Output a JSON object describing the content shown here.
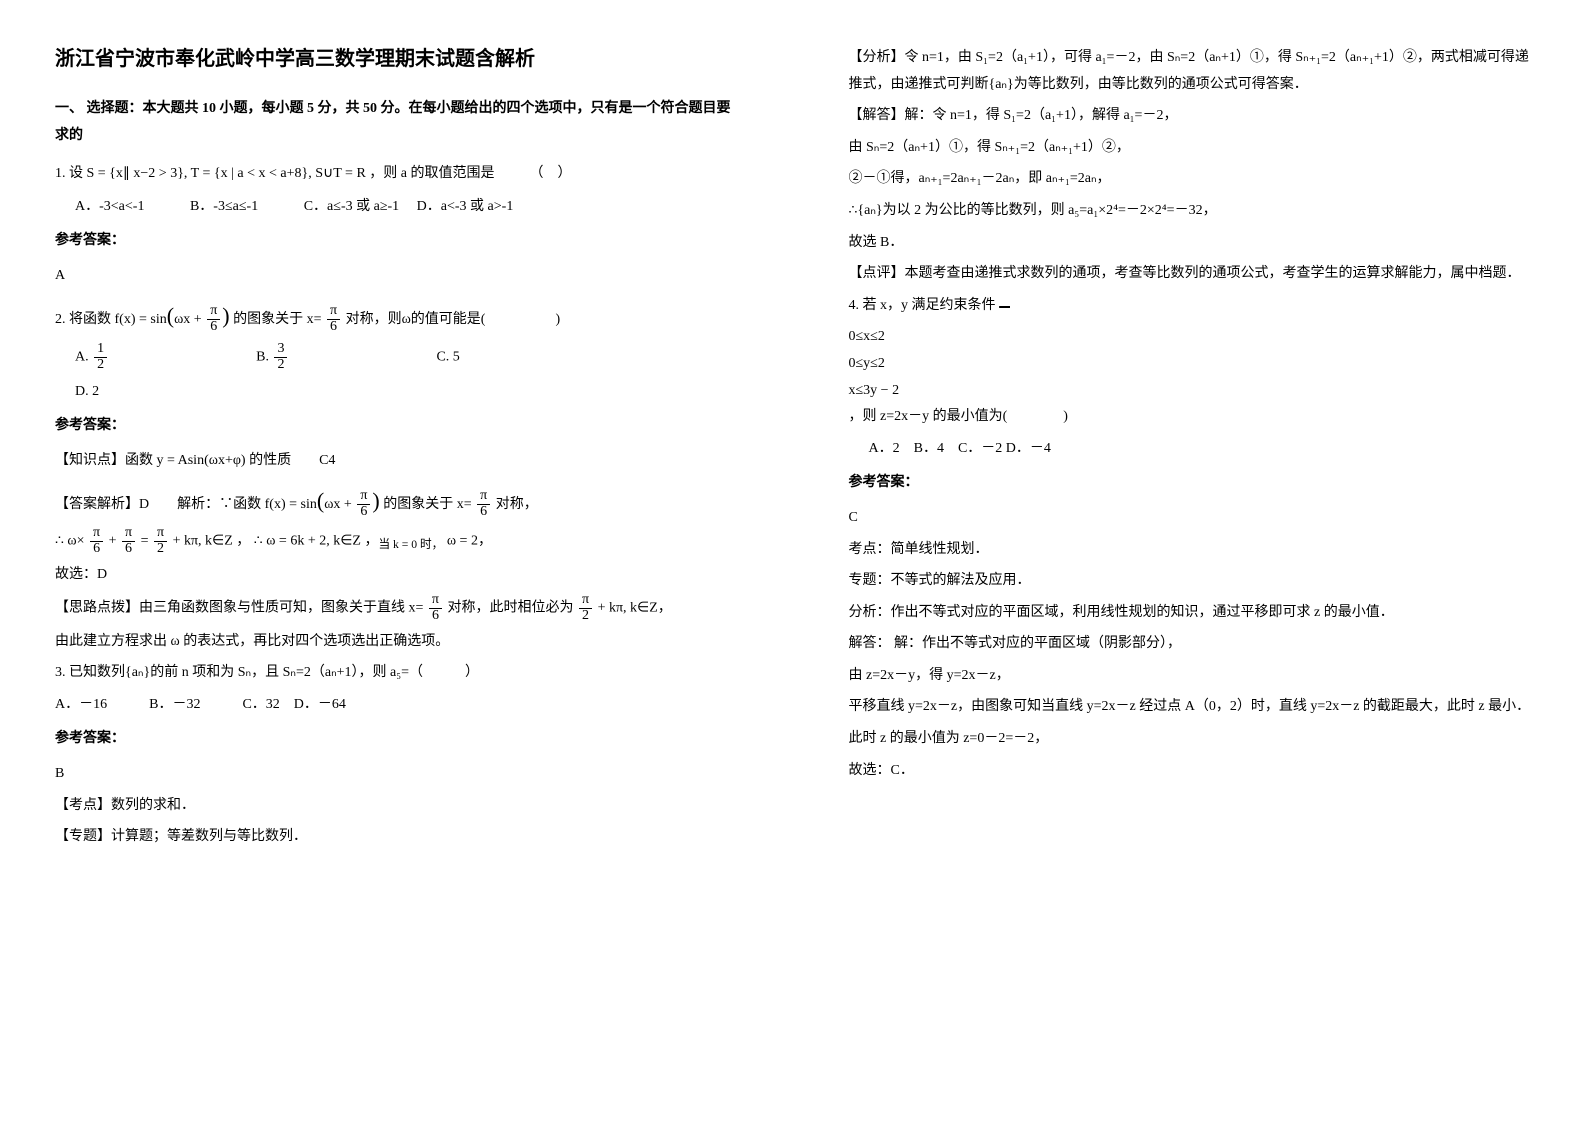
{
  "title": "浙江省宁波市奉化武岭中学高三数学理期末试题含解析",
  "section1_heading": "一、 选择题：本大题共 10 小题，每小题 5 分，共 50 分。在每小题给出的四个选项中，只有是一个符合题目要求的",
  "q1": {
    "stem_prefix": "1. 设",
    "set_expr": "S = {x∥ x−2 > 3}, T = {x | a < x < a+8}, S∪T = R",
    "stem_suffix": "，则 a 的取值范围是　　　（　）",
    "optA": "A．-3<a<-1",
    "optB": "B．-3≤a≤-1",
    "optC": "C．a≤-3 或 a≥-1",
    "optD": "D．a<-3 或 a>-1",
    "answer_label": "参考答案：",
    "answer": "A"
  },
  "q2": {
    "stem_prefix": "2. 将函数",
    "func": "f(x) = sin",
    "inside": "ωx +",
    "pi6_num": "π",
    "pi6_den": "6",
    "stem_mid": "的图象关于 x=",
    "xval_num": "π",
    "xval_den": "6",
    "stem_suffix": "对称，则ω的值可能是(　　　　　)",
    "optA_label": "A.",
    "optA_num": "1",
    "optA_den": "2",
    "optB_label": "B.",
    "optB_num": "3",
    "optB_den": "2",
    "optC": "C. 5",
    "optD": "D. 2",
    "answer_label": "参考答案：",
    "knowledge": "【知识点】函数",
    "knowledge_expr": "y = Asin(ωx+φ)",
    "knowledge_suffix": "的性质　　C4",
    "parse_label": "【答案解析】D　　解析：∵函数",
    "parse_mid": "的图象关于 x=",
    "parse_suffix": "对称，",
    "deriv_line": "∴ ω×",
    "deriv_pi6n": "π",
    "deriv_pi6d": "6",
    "deriv_plus": "+",
    "deriv_pi6n2": "π",
    "deriv_pi6d2": "6",
    "deriv_eq": "=",
    "deriv_pi2n": "π",
    "deriv_pi2d": "2",
    "deriv_tail": "+ kπ, k∈Z",
    "deriv_result": "∴ ω = 6k + 2, k∈Z",
    "deriv_when": "当 k = 0 时，",
    "deriv_final": "ω = 2",
    "hence": "故选：D",
    "hint_label": "【思路点拨】由三角函数图象与性质可知，图象关于直线 x=",
    "hint_mid": "对称，此时相位必为",
    "hint_pi2n": "π",
    "hint_pi2d": "2",
    "hint_tail": "+ kπ, k∈Z",
    "hint_line2": "由此建立方程求出",
    "hint_omega": "ω",
    "hint_line2_tail": "的表达式，再比对四个选项选出正确选项。"
  },
  "q3": {
    "stem": "3. 已知数列{aₙ}的前 n 项和为 Sₙ，且 Sₙ=2（aₙ+1），则 a₅=（　　　）",
    "opts": "A．－16　　　B．－32　　　C．32　D．－64",
    "answer_label": "参考答案：",
    "answer": "B",
    "kaodian": "【考点】数列的求和．",
    "zhuanti": "【专题】计算题；等差数列与等比数列．"
  },
  "col2": {
    "fenxi": "【分析】令 n=1，由 S₁=2（a₁+1），可得 a₁=－2，由 Sₙ=2（aₙ+1）①，得 Sₙ₊₁=2（aₙ₊₁+1）②，两式相减可得递推式，由递推式可判断{aₙ}为等比数列，由等比数列的通项公式可得答案．",
    "jieda_label": "【解答】解：令 n=1，得 S₁=2（a₁+1），解得 a₁=－2，",
    "jieda_l2": "由 Sₙ=2（aₙ+1）①，得 Sₙ₊₁=2（aₙ₊₁+1）②，",
    "jieda_l3": "②－①得，aₙ₊₁=2aₙ₊₁－2aₙ，即 aₙ₊₁=2aₙ，",
    "jieda_l4": "∴{aₙ}为以 2 为公比的等比数列，则 a₅=a₁×2⁴=－2×2⁴=－32，",
    "jieda_l5": "故选 B．",
    "dianping": "【点评】本题考查由递推式求数列的通项，考查等比数列的通项公式，考查学生的运算求解能力，属中档题．"
  },
  "q4": {
    "stem_prefix": "4. 若 x，y 满足约束条件",
    "sys1": "0≤x≤2",
    "sys2": "0≤y≤2",
    "sys3": "x≤3y − 2",
    "stem_suffix": "，则 z=2x－y 的最小值为(　　　　)",
    "opts": "A．2　B．4　C．－2 D．－4",
    "answer_label": "参考答案：",
    "answer": "C",
    "kaodian": "考点：简单线性规划．",
    "zhuanti": "专题：不等式的解法及应用．",
    "fenxi": "分析：作出不等式对应的平面区域，利用线性规划的知识，通过平移即可求 z 的最小值．",
    "jieda1": "解答： 解：作出不等式对应的平面区域（阴影部分），",
    "jieda2": "由 z=2x－y，得 y=2x－z，",
    "jieda3": "平移直线 y=2x－z，由图象可知当直线 y=2x－z 经过点 A（0，2）时，直线 y=2x－z 的截距最大，此时 z 最小．",
    "jieda4": "此时 z 的最小值为 z=0－2=－2，",
    "jieda5": "故选：C．"
  }
}
